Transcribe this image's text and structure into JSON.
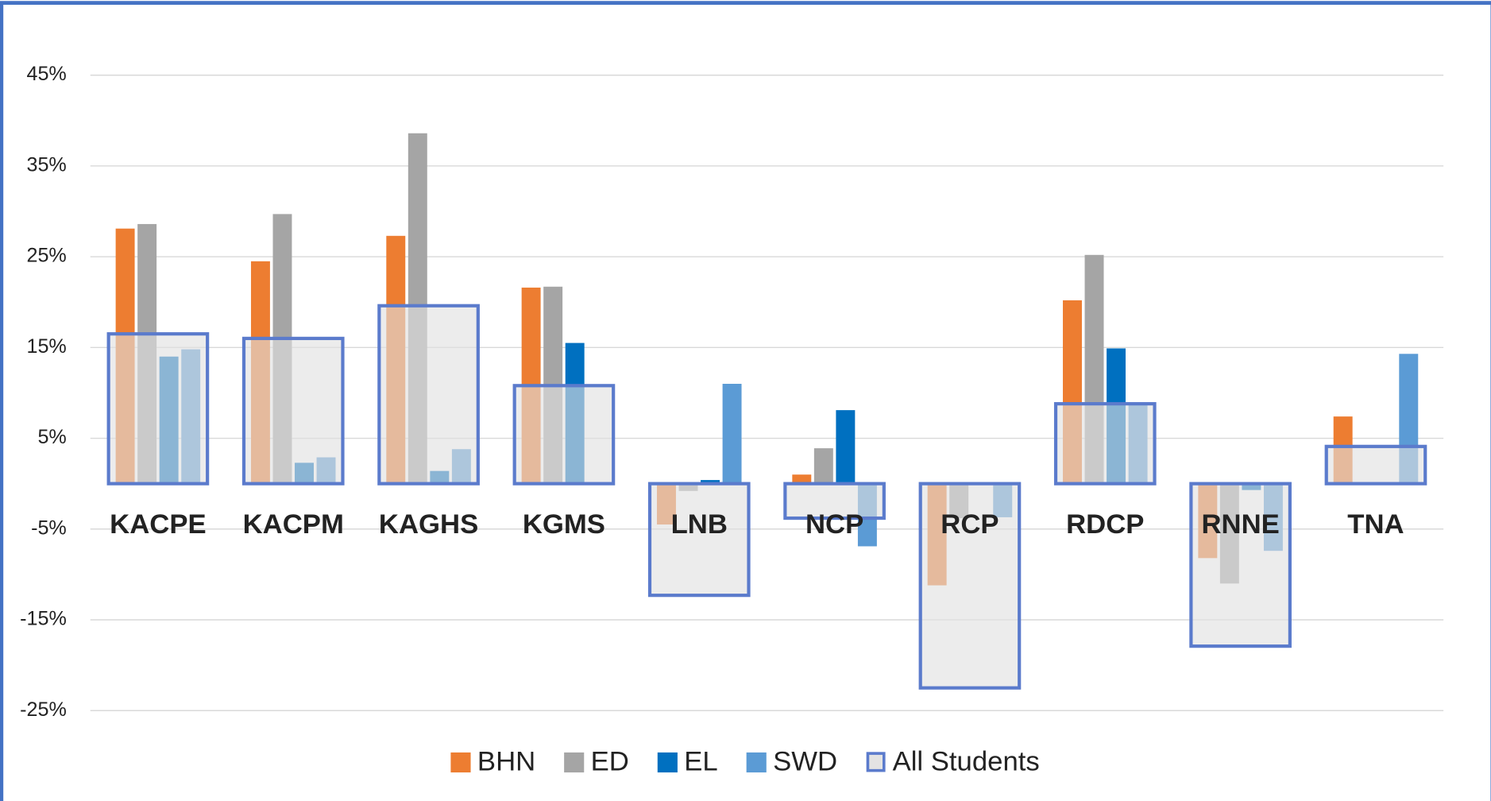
{
  "chart_data": {
    "type": "bar",
    "categories": [
      "KACPE",
      "KACPM",
      "KAGHS",
      "KGMS",
      "LNB",
      "NCP",
      "RCP",
      "RDCP",
      "RNNE",
      "TNA"
    ],
    "series": [
      {
        "name": "BHN",
        "color": "#ed7d31",
        "values": [
          28.1,
          24.5,
          27.3,
          21.6,
          -4.5,
          1.0,
          -11.2,
          20.2,
          -8.2,
          7.4
        ]
      },
      {
        "name": "ED",
        "color": "#a5a5a5",
        "values": [
          28.6,
          29.7,
          38.6,
          21.7,
          -0.8,
          3.9,
          -3.8,
          25.2,
          -11.0,
          null
        ]
      },
      {
        "name": "EL",
        "color": "#0070c0",
        "values": [
          14.0,
          2.3,
          1.4,
          15.5,
          0.4,
          8.1,
          null,
          14.9,
          -0.7,
          null
        ]
      },
      {
        "name": "SWD",
        "color": "#5b9bd5",
        "values": [
          14.8,
          2.9,
          3.8,
          null,
          11.0,
          -6.9,
          -3.7,
          8.8,
          -7.4,
          14.3
        ]
      },
      {
        "name": "All Students",
        "color": "#5b7bcc",
        "overlay": true,
        "values": [
          16.5,
          16.0,
          19.6,
          10.8,
          -12.3,
          -3.8,
          -22.5,
          8.8,
          -17.9,
          4.1
        ]
      }
    ],
    "ylim": [
      -25,
      45
    ],
    "yticks": [
      {
        "value": -25,
        "label": "-25%"
      },
      {
        "value": -15,
        "label": "-15%"
      },
      {
        "value": -5,
        "label": "-5%"
      },
      {
        "value": 5,
        "label": "5%"
      },
      {
        "value": 15,
        "label": "15%"
      },
      {
        "value": 25,
        "label": "25%"
      },
      {
        "value": 35,
        "label": "35%"
      },
      {
        "value": 45,
        "label": "45%"
      }
    ],
    "grid": true,
    "legend": "bottom"
  }
}
